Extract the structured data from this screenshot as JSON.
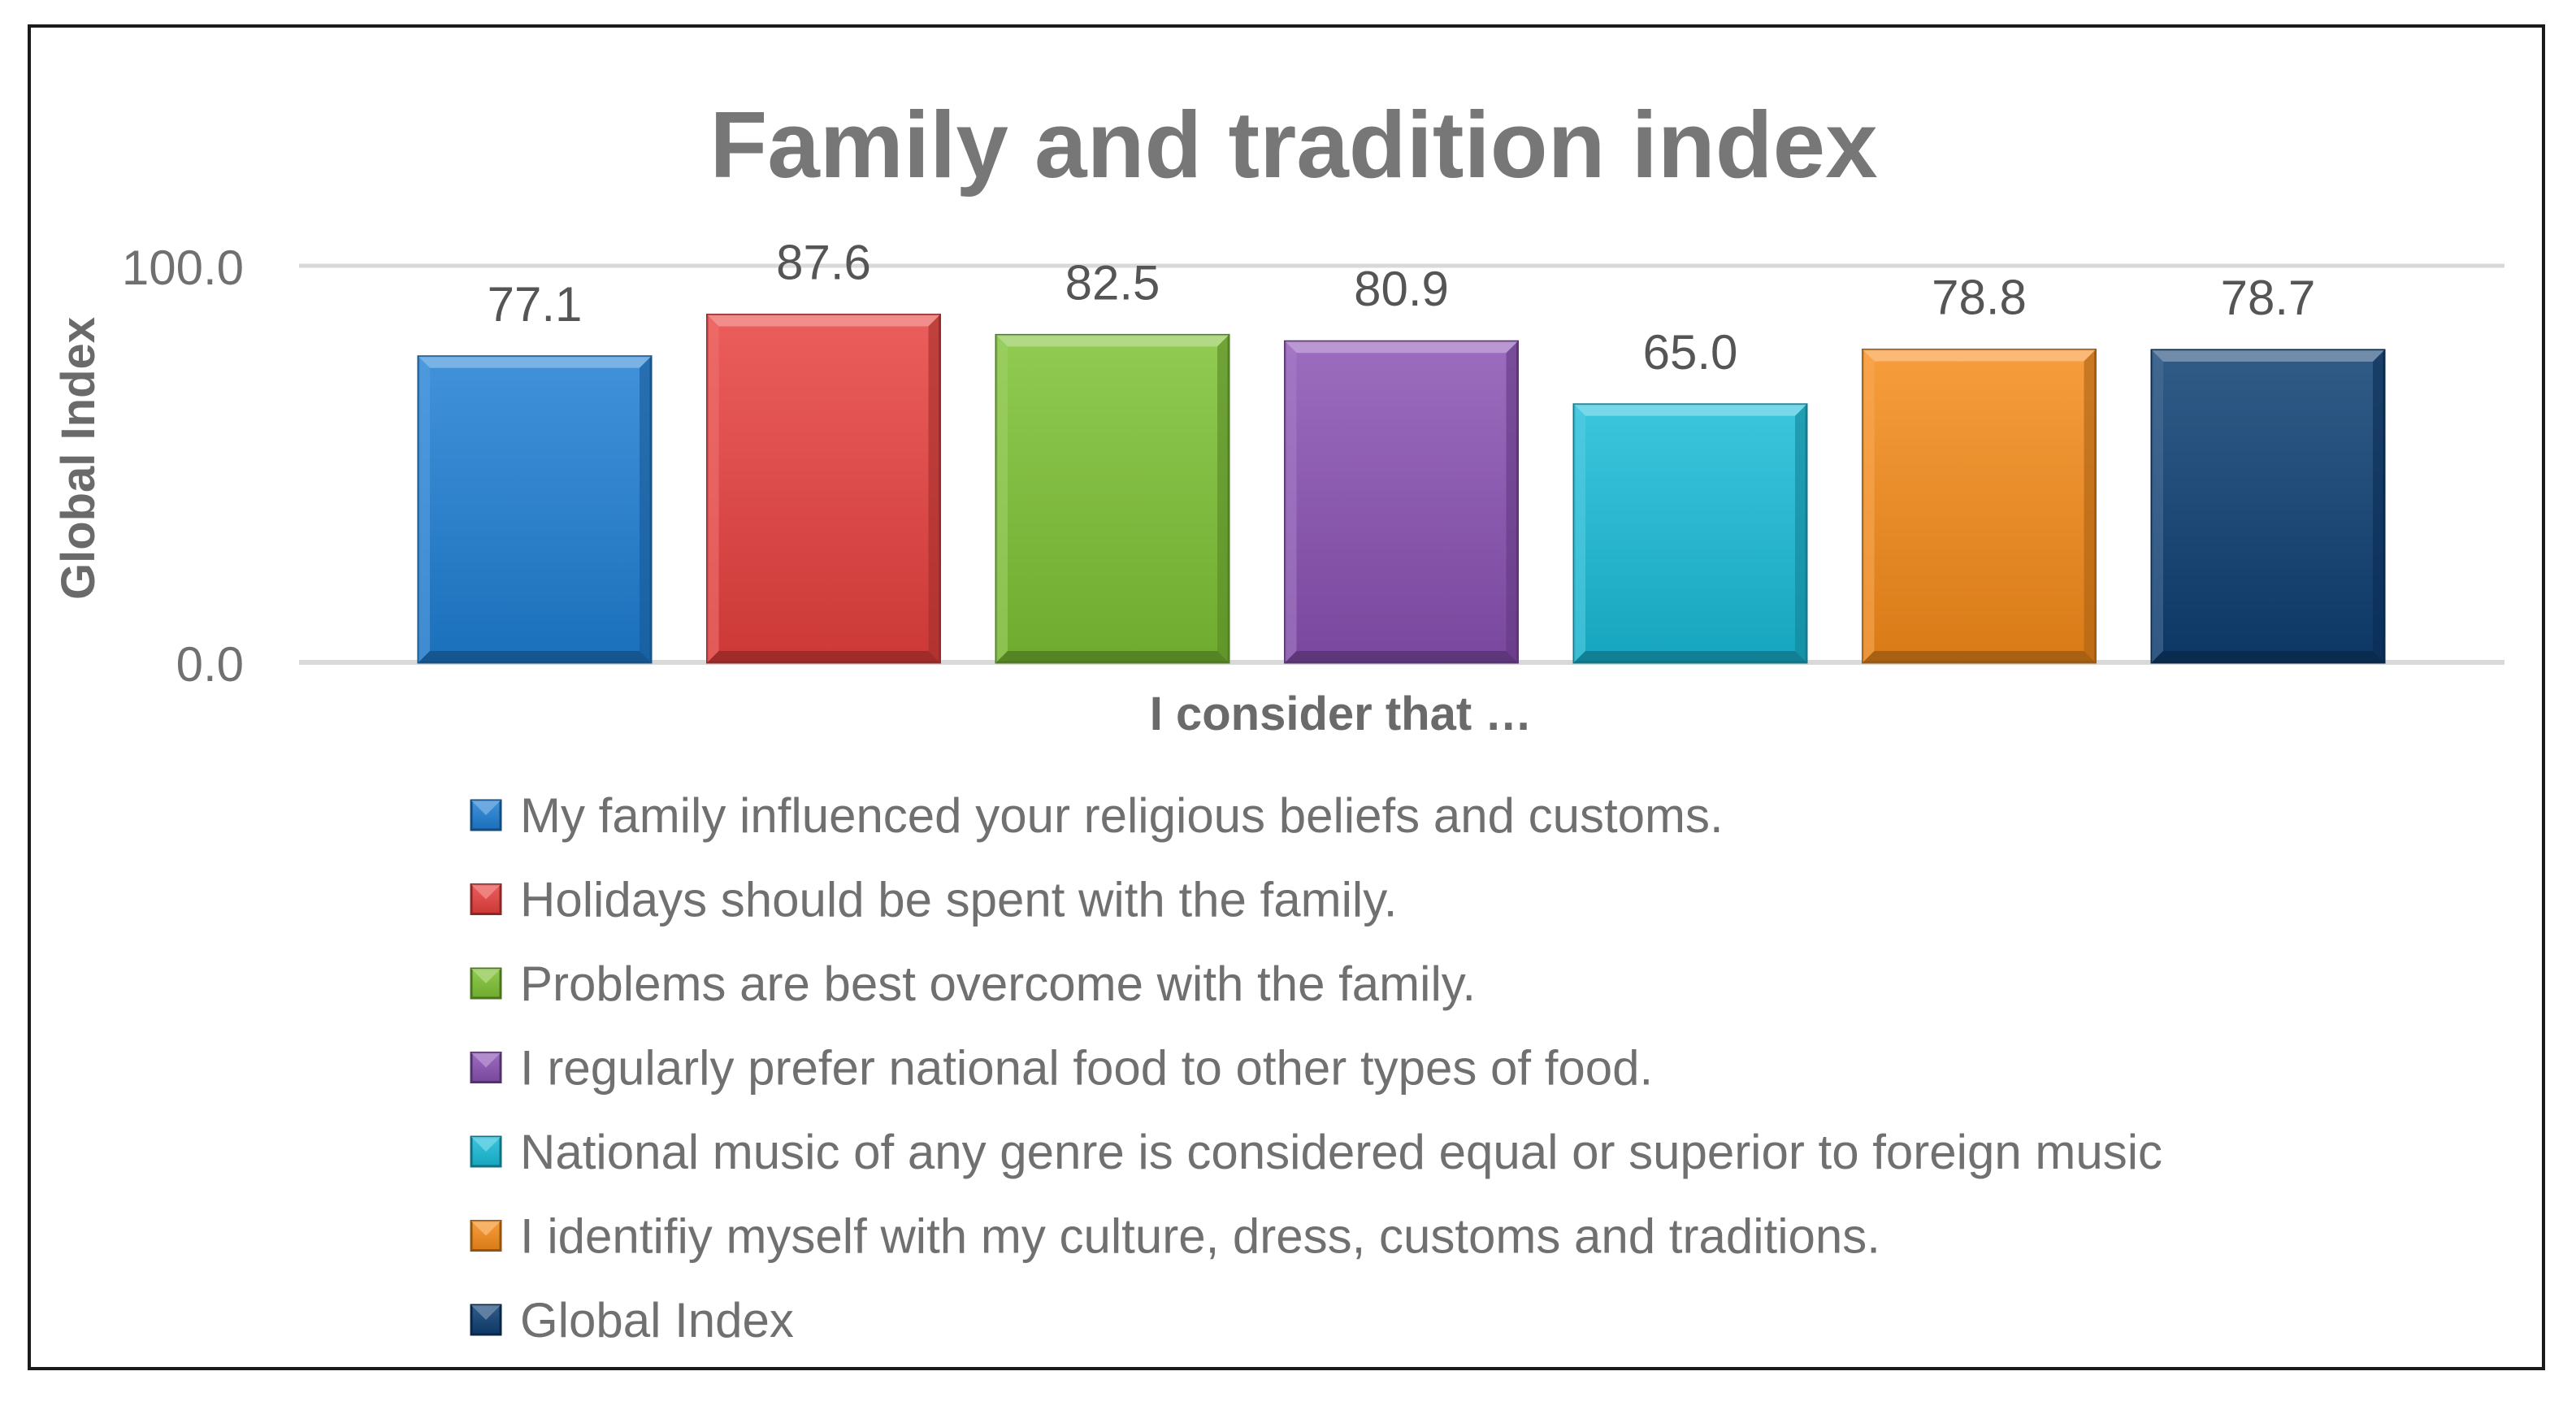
{
  "chart_data": {
    "type": "bar",
    "title": "Family and tradition index",
    "ylabel": "Global Index",
    "xlabel": "I consider that …",
    "ylim": [
      0,
      100
    ],
    "y_ticks": [
      "0.0",
      "100.0"
    ],
    "grid": true,
    "legend_position": "bottom",
    "series": [
      {
        "name": "My family influenced your religious beliefs and customs.",
        "value": 77.1,
        "label": "77.1",
        "color": "#1f7fd4"
      },
      {
        "name": "Holidays should be spent with the family.",
        "value": 87.6,
        "label": "87.6",
        "color": "#e8413f"
      },
      {
        "name": "Problems are best overcome with the family.",
        "value": 82.5,
        "label": "82.5",
        "color": "#7dc234"
      },
      {
        "name": "I regularly prefer national food to other types of food.",
        "value": 80.9,
        "label": "80.9",
        "color": "#8a52b4"
      },
      {
        "name": "National music of any genre is considered equal or superior to foreign music",
        "value": 65.0,
        "label": "65.0",
        "color": "#19bcd8"
      },
      {
        "name": "I identifiy myself with my culture, dress, customs and traditions.",
        "value": 78.8,
        "label": "78.8",
        "color": "#f58c1a"
      },
      {
        "name": "Global Index",
        "value": 78.7,
        "label": "78.7",
        "color": "#0e3f73"
      }
    ]
  }
}
